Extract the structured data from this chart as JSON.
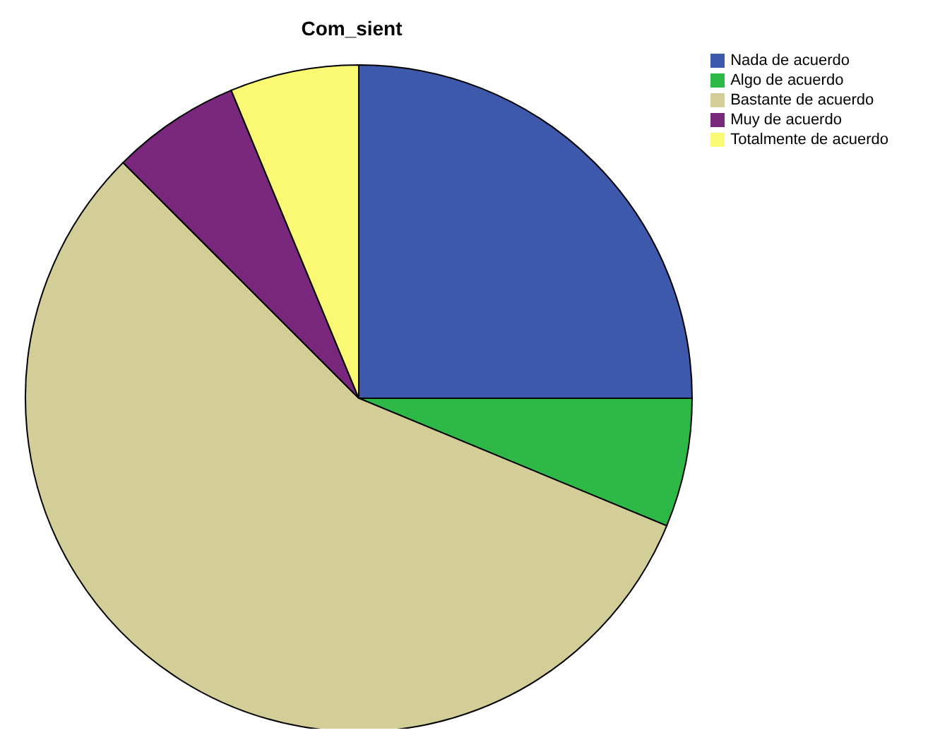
{
  "chart_data": {
    "type": "pie",
    "title": "Com_sient",
    "categories": [
      "Nada de acuerdo",
      "Algo de acuerdo",
      "Bastante de acuerdo",
      "Muy de acuerdo",
      "Totalmente de acuerdo"
    ],
    "values": [
      25,
      6.25,
      56.25,
      6.25,
      6.25
    ],
    "colors": [
      "#3e58ac",
      "#2eb848",
      "#d3ce97",
      "#79287e",
      "#fbf873"
    ],
    "legend": "top right"
  }
}
